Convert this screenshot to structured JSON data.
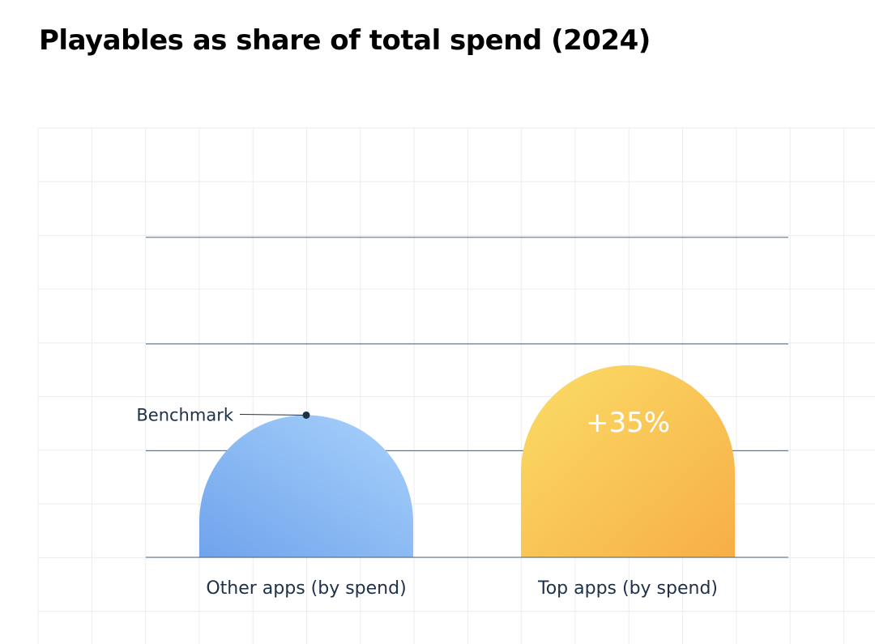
{
  "title": "Playables as share of total spend (2024)",
  "chart_data": {
    "type": "bar",
    "title": "Playables as share of total spend (2024)",
    "xlabel": "",
    "ylabel": "",
    "categories": [
      "Other apps (by spend)",
      "Top apps (by spend)"
    ],
    "values": [
      100,
      135
    ],
    "ylim": [
      0,
      225
    ],
    "grid": true,
    "legend": "none",
    "annotations": [
      {
        "category": "Other apps (by spend)",
        "text": "Benchmark"
      },
      {
        "category": "Top apps (by spend)",
        "text": "+35%"
      }
    ],
    "colors": {
      "other_bar_start": "#6fa3ec",
      "other_bar_end": "#a9d2fb",
      "top_bar_start": "#fbdd66",
      "top_bar_end": "#f7ae47",
      "gridline": "#4f6378",
      "background_grid": "#ececec",
      "text": "#1d3149"
    }
  }
}
